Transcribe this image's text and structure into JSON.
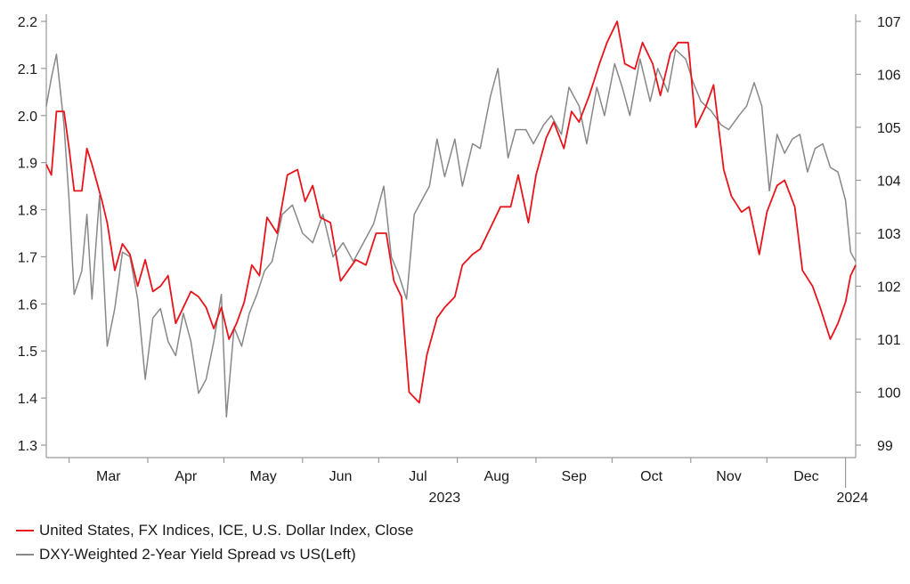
{
  "chart_data": {
    "type": "line",
    "x_months": [
      "Mar",
      "Apr",
      "May",
      "Jun",
      "Jul",
      "Aug",
      "Sep",
      "Oct",
      "Nov",
      "Dec"
    ],
    "x_year_labels": [
      "2023",
      "2024"
    ],
    "x_range": [
      "2023-02-20",
      "2024-01-05"
    ],
    "left_axis": {
      "ticks": [
        "1.3",
        "1.4",
        "1.5",
        "1.6",
        "1.7",
        "1.8",
        "1.9",
        "2.0",
        "2.1",
        "2.2"
      ],
      "ylim": [
        1.3,
        2.2
      ]
    },
    "right_axis": {
      "ticks": [
        "99",
        "100",
        "101",
        "102",
        "103",
        "104",
        "105",
        "106",
        "107"
      ],
      "ylim": [
        99,
        107
      ]
    },
    "series": [
      {
        "name": "United States, FX Indices, ICE, U.S. Dollar Index, Close",
        "axis": "right",
        "color": "#e8141b",
        "points": [
          [
            "2023-02-20",
            104.3
          ],
          [
            "2023-02-22",
            104.1
          ],
          [
            "2023-02-24",
            105.3
          ],
          [
            "2023-02-27",
            105.3
          ],
          [
            "2023-03-01",
            104.6
          ],
          [
            "2023-03-03",
            103.8
          ],
          [
            "2023-03-06",
            103.8
          ],
          [
            "2023-03-08",
            104.6
          ],
          [
            "2023-03-10",
            104.3
          ],
          [
            "2023-03-14",
            103.6
          ],
          [
            "2023-03-16",
            103.2
          ],
          [
            "2023-03-19",
            102.3
          ],
          [
            "2023-03-22",
            102.8
          ],
          [
            "2023-03-25",
            102.6
          ],
          [
            "2023-03-28",
            102.0
          ],
          [
            "2023-03-31",
            102.5
          ],
          [
            "2023-04-03",
            101.9
          ],
          [
            "2023-04-06",
            102.0
          ],
          [
            "2023-04-09",
            102.2
          ],
          [
            "2023-04-12",
            101.3
          ],
          [
            "2023-04-15",
            101.6
          ],
          [
            "2023-04-18",
            101.9
          ],
          [
            "2023-04-21",
            101.8
          ],
          [
            "2023-04-24",
            101.6
          ],
          [
            "2023-04-27",
            101.2
          ],
          [
            "2023-04-30",
            101.6
          ],
          [
            "2023-05-03",
            101.0
          ],
          [
            "2023-05-06",
            101.3
          ],
          [
            "2023-05-09",
            101.7
          ],
          [
            "2023-05-12",
            102.4
          ],
          [
            "2023-05-15",
            102.2
          ],
          [
            "2023-05-18",
            103.3
          ],
          [
            "2023-05-22",
            103.0
          ],
          [
            "2023-05-26",
            104.1
          ],
          [
            "2023-05-30",
            104.2
          ],
          [
            "2023-06-02",
            103.6
          ],
          [
            "2023-06-05",
            103.9
          ],
          [
            "2023-06-08",
            103.3
          ],
          [
            "2023-06-12",
            103.2
          ],
          [
            "2023-06-16",
            102.1
          ],
          [
            "2023-06-19",
            102.3
          ],
          [
            "2023-06-22",
            102.5
          ],
          [
            "2023-06-26",
            102.4
          ],
          [
            "2023-06-30",
            103.0
          ],
          [
            "2023-07-04",
            103.0
          ],
          [
            "2023-07-07",
            102.1
          ],
          [
            "2023-07-10",
            101.8
          ],
          [
            "2023-07-13",
            100.0
          ],
          [
            "2023-07-17",
            99.8
          ],
          [
            "2023-07-20",
            100.7
          ],
          [
            "2023-07-24",
            101.4
          ],
          [
            "2023-07-27",
            101.6
          ],
          [
            "2023-07-31",
            101.8
          ],
          [
            "2023-08-03",
            102.4
          ],
          [
            "2023-08-07",
            102.6
          ],
          [
            "2023-08-10",
            102.7
          ],
          [
            "2023-08-14",
            103.1
          ],
          [
            "2023-08-18",
            103.5
          ],
          [
            "2023-08-22",
            103.5
          ],
          [
            "2023-08-25",
            104.1
          ],
          [
            "2023-08-29",
            103.2
          ],
          [
            "2023-09-01",
            104.1
          ],
          [
            "2023-09-05",
            104.8
          ],
          [
            "2023-09-08",
            105.1
          ],
          [
            "2023-09-12",
            104.6
          ],
          [
            "2023-09-15",
            105.3
          ],
          [
            "2023-09-18",
            105.1
          ],
          [
            "2023-09-22",
            105.6
          ],
          [
            "2023-09-26",
            106.2
          ],
          [
            "2023-09-29",
            106.6
          ],
          [
            "2023-10-03",
            107.0
          ],
          [
            "2023-10-06",
            106.2
          ],
          [
            "2023-10-10",
            106.1
          ],
          [
            "2023-10-13",
            106.6
          ],
          [
            "2023-10-17",
            106.2
          ],
          [
            "2023-10-20",
            105.6
          ],
          [
            "2023-10-24",
            106.4
          ],
          [
            "2023-10-27",
            106.6
          ],
          [
            "2023-10-31",
            106.6
          ],
          [
            "2023-11-03",
            105.0
          ],
          [
            "2023-11-07",
            105.4
          ],
          [
            "2023-11-10",
            105.8
          ],
          [
            "2023-11-14",
            104.2
          ],
          [
            "2023-11-17",
            103.7
          ],
          [
            "2023-11-21",
            103.4
          ],
          [
            "2023-11-24",
            103.5
          ],
          [
            "2023-11-28",
            102.6
          ],
          [
            "2023-12-01",
            103.4
          ],
          [
            "2023-12-05",
            103.9
          ],
          [
            "2023-12-08",
            104.0
          ],
          [
            "2023-12-12",
            103.5
          ],
          [
            "2023-12-15",
            102.3
          ],
          [
            "2023-12-19",
            102.0
          ],
          [
            "2023-12-22",
            101.6
          ],
          [
            "2023-12-26",
            101.0
          ],
          [
            "2023-12-29",
            101.3
          ],
          [
            "2024-01-01",
            101.7
          ],
          [
            "2024-01-03",
            102.2
          ],
          [
            "2024-01-05",
            102.4
          ]
        ]
      },
      {
        "name": "DXY-Weighted 2-Year Yield Spread vs US(Left)",
        "axis": "left",
        "color": "#888888",
        "points": [
          [
            "2023-02-20",
            2.02
          ],
          [
            "2023-02-22",
            2.08
          ],
          [
            "2023-02-24",
            2.13
          ],
          [
            "2023-02-27",
            1.98
          ],
          [
            "2023-03-01",
            1.82
          ],
          [
            "2023-03-03",
            1.62
          ],
          [
            "2023-03-06",
            1.67
          ],
          [
            "2023-03-08",
            1.79
          ],
          [
            "2023-03-10",
            1.61
          ],
          [
            "2023-03-13",
            1.83
          ],
          [
            "2023-03-16",
            1.51
          ],
          [
            "2023-03-19",
            1.59
          ],
          [
            "2023-03-22",
            1.71
          ],
          [
            "2023-03-25",
            1.7
          ],
          [
            "2023-03-28",
            1.61
          ],
          [
            "2023-03-31",
            1.44
          ],
          [
            "2023-04-03",
            1.57
          ],
          [
            "2023-04-06",
            1.59
          ],
          [
            "2023-04-09",
            1.52
          ],
          [
            "2023-04-12",
            1.49
          ],
          [
            "2023-04-15",
            1.58
          ],
          [
            "2023-04-18",
            1.52
          ],
          [
            "2023-04-21",
            1.41
          ],
          [
            "2023-04-24",
            1.44
          ],
          [
            "2023-04-27",
            1.52
          ],
          [
            "2023-04-30",
            1.62
          ],
          [
            "2023-05-02",
            1.36
          ],
          [
            "2023-05-05",
            1.55
          ],
          [
            "2023-05-08",
            1.51
          ],
          [
            "2023-05-11",
            1.58
          ],
          [
            "2023-05-14",
            1.62
          ],
          [
            "2023-05-17",
            1.67
          ],
          [
            "2023-05-20",
            1.69
          ],
          [
            "2023-05-24",
            1.79
          ],
          [
            "2023-05-28",
            1.81
          ],
          [
            "2023-06-01",
            1.75
          ],
          [
            "2023-06-05",
            1.73
          ],
          [
            "2023-06-09",
            1.79
          ],
          [
            "2023-06-13",
            1.7
          ],
          [
            "2023-06-17",
            1.73
          ],
          [
            "2023-06-21",
            1.69
          ],
          [
            "2023-06-25",
            1.73
          ],
          [
            "2023-06-29",
            1.77
          ],
          [
            "2023-07-03",
            1.85
          ],
          [
            "2023-07-06",
            1.7
          ],
          [
            "2023-07-09",
            1.66
          ],
          [
            "2023-07-12",
            1.61
          ],
          [
            "2023-07-15",
            1.79
          ],
          [
            "2023-07-18",
            1.82
          ],
          [
            "2023-07-21",
            1.85
          ],
          [
            "2023-07-24",
            1.95
          ],
          [
            "2023-07-27",
            1.87
          ],
          [
            "2023-07-31",
            1.95
          ],
          [
            "2023-08-03",
            1.85
          ],
          [
            "2023-08-07",
            1.94
          ],
          [
            "2023-08-10",
            1.93
          ],
          [
            "2023-08-14",
            2.04
          ],
          [
            "2023-08-17",
            2.1
          ],
          [
            "2023-08-21",
            1.91
          ],
          [
            "2023-08-24",
            1.97
          ],
          [
            "2023-08-28",
            1.97
          ],
          [
            "2023-08-31",
            1.94
          ],
          [
            "2023-09-04",
            1.98
          ],
          [
            "2023-09-07",
            2.0
          ],
          [
            "2023-09-11",
            1.96
          ],
          [
            "2023-09-14",
            2.06
          ],
          [
            "2023-09-18",
            2.02
          ],
          [
            "2023-09-21",
            1.94
          ],
          [
            "2023-09-25",
            2.06
          ],
          [
            "2023-09-28",
            2.0
          ],
          [
            "2023-10-02",
            2.11
          ],
          [
            "2023-10-05",
            2.06
          ],
          [
            "2023-10-08",
            2.0
          ],
          [
            "2023-10-12",
            2.12
          ],
          [
            "2023-10-16",
            2.03
          ],
          [
            "2023-10-19",
            2.1
          ],
          [
            "2023-10-23",
            2.05
          ],
          [
            "2023-10-26",
            2.14
          ],
          [
            "2023-10-30",
            2.12
          ],
          [
            "2023-11-02",
            2.07
          ],
          [
            "2023-11-05",
            2.03
          ],
          [
            "2023-11-09",
            2.01
          ],
          [
            "2023-11-13",
            1.98
          ],
          [
            "2023-11-16",
            1.97
          ],
          [
            "2023-11-20",
            2.0
          ],
          [
            "2023-11-23",
            2.02
          ],
          [
            "2023-11-26",
            2.07
          ],
          [
            "2023-11-29",
            2.02
          ],
          [
            "2023-12-02",
            1.84
          ],
          [
            "2023-12-05",
            1.96
          ],
          [
            "2023-12-08",
            1.92
          ],
          [
            "2023-12-11",
            1.95
          ],
          [
            "2023-12-14",
            1.96
          ],
          [
            "2023-12-17",
            1.88
          ],
          [
            "2023-12-20",
            1.93
          ],
          [
            "2023-12-23",
            1.94
          ],
          [
            "2023-12-26",
            1.89
          ],
          [
            "2023-12-29",
            1.88
          ],
          [
            "2024-01-01",
            1.82
          ],
          [
            "2024-01-03",
            1.71
          ],
          [
            "2024-01-05",
            1.69
          ]
        ]
      }
    ],
    "grid": false,
    "legend_position": "bottom-left"
  }
}
